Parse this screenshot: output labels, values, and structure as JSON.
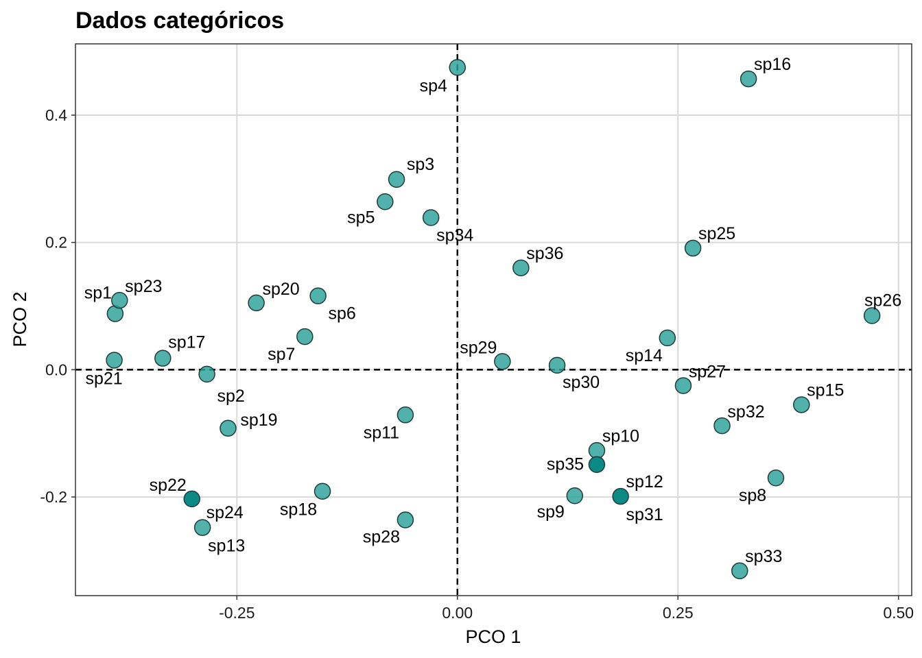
{
  "chart_data": {
    "type": "scatter",
    "title": "Dados categóricos",
    "xlabel": "PCO 1",
    "ylabel": "PCO 2",
    "xlim": [
      -0.433,
      0.515
    ],
    "ylim": [
      -0.355,
      0.512
    ],
    "x_ticks": [
      -0.25,
      0.0,
      0.25,
      0.5
    ],
    "x_tick_labels": [
      "-0.25",
      "0.00",
      "0.25",
      "0.50"
    ],
    "y_ticks": [
      -0.2,
      0.0,
      0.2,
      0.4
    ],
    "y_tick_labels": [
      "-0.2",
      "0.0",
      "0.2",
      "0.4"
    ],
    "grid": true,
    "reference_lines": {
      "x": 0,
      "y": 0,
      "style": "dashed"
    },
    "colors": {
      "point": "#2aa198",
      "point_dark": "#0b8a85",
      "grid": "#d9d9d9"
    },
    "points": [
      {
        "label": "sp1",
        "x": -0.388,
        "y": 0.088
      },
      {
        "label": "sp2",
        "x": -0.284,
        "y": -0.007
      },
      {
        "label": "sp3",
        "x": -0.069,
        "y": 0.299
      },
      {
        "label": "sp4",
        "x": 0.0,
        "y": 0.475
      },
      {
        "label": "sp5",
        "x": -0.082,
        "y": 0.264
      },
      {
        "label": "sp6",
        "x": -0.158,
        "y": 0.116
      },
      {
        "label": "sp7",
        "x": -0.173,
        "y": 0.052
      },
      {
        "label": "sp8",
        "x": 0.361,
        "y": -0.17
      },
      {
        "label": "sp9",
        "x": 0.133,
        "y": -0.198
      },
      {
        "label": "sp10",
        "x": 0.158,
        "y": -0.127
      },
      {
        "label": "sp11",
        "x": -0.059,
        "y": -0.071
      },
      {
        "label": "sp12",
        "x": 0.185,
        "y": -0.199
      },
      {
        "label": "sp13",
        "x": -0.289,
        "y": -0.248
      },
      {
        "label": "sp14",
        "x": 0.238,
        "y": 0.05
      },
      {
        "label": "sp15",
        "x": 0.39,
        "y": -0.055
      },
      {
        "label": "sp16",
        "x": 0.33,
        "y": 0.457
      },
      {
        "label": "sp17",
        "x": -0.334,
        "y": 0.018
      },
      {
        "label": "sp18",
        "x": -0.153,
        "y": -0.191
      },
      {
        "label": "sp19",
        "x": -0.26,
        "y": -0.092
      },
      {
        "label": "sp20",
        "x": -0.228,
        "y": 0.105
      },
      {
        "label": "sp21",
        "x": -0.389,
        "y": 0.015
      },
      {
        "label": "sp22",
        "x": -0.301,
        "y": -0.203
      },
      {
        "label": "sp23",
        "x": -0.383,
        "y": 0.109
      },
      {
        "label": "sp24",
        "x": -0.301,
        "y": -0.203
      },
      {
        "label": "sp25",
        "x": 0.267,
        "y": 0.191
      },
      {
        "label": "sp26",
        "x": 0.47,
        "y": 0.085
      },
      {
        "label": "sp27",
        "x": 0.256,
        "y": -0.025
      },
      {
        "label": "sp28",
        "x": -0.059,
        "y": -0.236
      },
      {
        "label": "sp29",
        "x": 0.051,
        "y": 0.013
      },
      {
        "label": "sp30",
        "x": 0.113,
        "y": 0.007
      },
      {
        "label": "sp31",
        "x": 0.185,
        "y": -0.199
      },
      {
        "label": "sp32",
        "x": 0.3,
        "y": -0.088
      },
      {
        "label": "sp33",
        "x": 0.32,
        "y": -0.316
      },
      {
        "label": "sp34",
        "x": -0.03,
        "y": 0.239
      },
      {
        "label": "sp35",
        "x": 0.158,
        "y": -0.149
      },
      {
        "label": "sp36",
        "x": 0.072,
        "y": 0.16
      }
    ]
  }
}
